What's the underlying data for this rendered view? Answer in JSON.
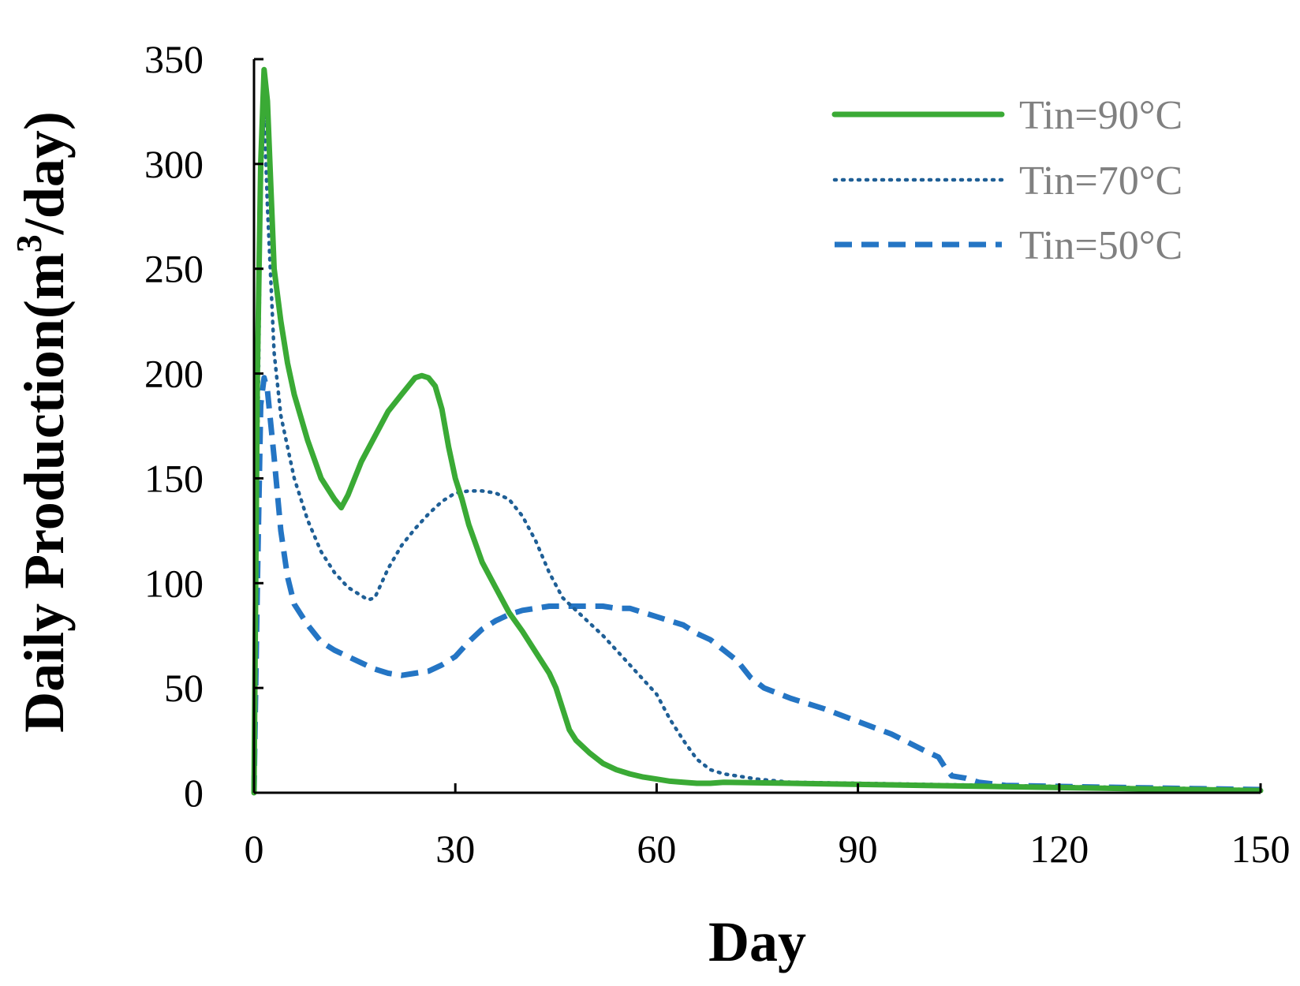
{
  "chart_data": {
    "type": "line",
    "title": "",
    "xlabel": "Day",
    "ylabel_main": "Daily Production(m",
    "ylabel_sup": "3",
    "ylabel_tail": "/day)",
    "xlim": [
      0,
      150
    ],
    "ylim": [
      0,
      350
    ],
    "xticks": [
      0,
      30,
      60,
      90,
      120,
      150
    ],
    "yticks": [
      0,
      50,
      100,
      150,
      200,
      250,
      300,
      350
    ],
    "grid": false,
    "legend_position": "top-right",
    "series": [
      {
        "name": "Tin=90°C",
        "color": "#3aaa35",
        "style": "solid",
        "x": [
          0,
          0.5,
          1,
          1.5,
          2,
          3,
          4,
          5,
          6,
          8,
          10,
          12,
          13,
          14,
          16,
          18,
          20,
          22,
          24,
          25,
          26,
          27,
          28,
          29,
          30,
          31,
          32,
          34,
          36,
          38,
          40,
          42,
          44,
          45,
          46,
          47,
          48,
          50,
          52,
          54,
          56,
          58,
          60,
          62,
          64,
          66,
          68,
          70,
          80,
          90,
          100,
          110,
          120,
          130,
          140,
          150
        ],
        "y": [
          0,
          200,
          300,
          345,
          330,
          250,
          225,
          205,
          190,
          168,
          150,
          140,
          136,
          142,
          158,
          170,
          182,
          190,
          198,
          199,
          198,
          194,
          183,
          165,
          150,
          140,
          128,
          110,
          98,
          86,
          77,
          67,
          57,
          50,
          40,
          30,
          25,
          19,
          14,
          11,
          9,
          7.5,
          6.5,
          5.5,
          5,
          4.5,
          4.5,
          5,
          4.5,
          4,
          3.5,
          3,
          2.5,
          2,
          1.5,
          1
        ]
      },
      {
        "name": "Tin=70°C",
        "color": "#1f5f96",
        "style": "dotted",
        "x": [
          0,
          0.5,
          1,
          1.5,
          2,
          3,
          4,
          6,
          8,
          10,
          12,
          14,
          16,
          17,
          18,
          19,
          20,
          22,
          24,
          26,
          28,
          30,
          32,
          34,
          36,
          38,
          40,
          42,
          44,
          46,
          48,
          50,
          52,
          54,
          56,
          58,
          60,
          62,
          64,
          66,
          68,
          70,
          72,
          75,
          80,
          90,
          100,
          110,
          120,
          130,
          140,
          150
        ],
        "y": [
          0,
          150,
          290,
          325,
          280,
          210,
          180,
          150,
          130,
          115,
          105,
          98,
          94,
          92,
          93,
          100,
          107,
          118,
          126,
          133,
          139,
          143,
          144,
          144,
          143,
          140,
          132,
          120,
          105,
          93,
          87,
          81,
          75,
          68,
          61,
          54,
          47,
          35,
          25,
          16,
          11,
          9,
          8,
          6.5,
          5,
          4.5,
          4,
          3.5,
          3,
          2.5,
          2,
          1.5
        ]
      },
      {
        "name": "Tin=50°C",
        "color": "#2475c4",
        "style": "dashed",
        "x": [
          0,
          0.5,
          1,
          1.5,
          2,
          3,
          4,
          5,
          6,
          8,
          10,
          12,
          14,
          16,
          18,
          20,
          22,
          24,
          26,
          28,
          30,
          32,
          34,
          36,
          38,
          40,
          42,
          44,
          46,
          48,
          50,
          52,
          54,
          56,
          58,
          60,
          62,
          64,
          66,
          68,
          70,
          72,
          74,
          76,
          80,
          85,
          90,
          95,
          100,
          102,
          103,
          104,
          106,
          108,
          112,
          120,
          130,
          140,
          150
        ],
        "y": [
          0,
          100,
          185,
          198,
          192,
          160,
          125,
          103,
          90,
          80,
          72,
          68,
          65,
          62,
          59,
          57,
          56,
          57,
          58,
          61,
          65,
          72,
          78,
          82,
          85,
          87,
          88,
          89,
          89,
          89,
          89,
          89,
          88,
          88,
          86,
          84,
          82,
          80,
          76,
          73,
          68,
          63,
          55,
          50,
          45,
          40,
          34,
          28,
          20,
          17,
          12,
          8,
          7,
          5,
          3.5,
          3,
          2.5,
          2,
          1.5
        ]
      }
    ]
  }
}
